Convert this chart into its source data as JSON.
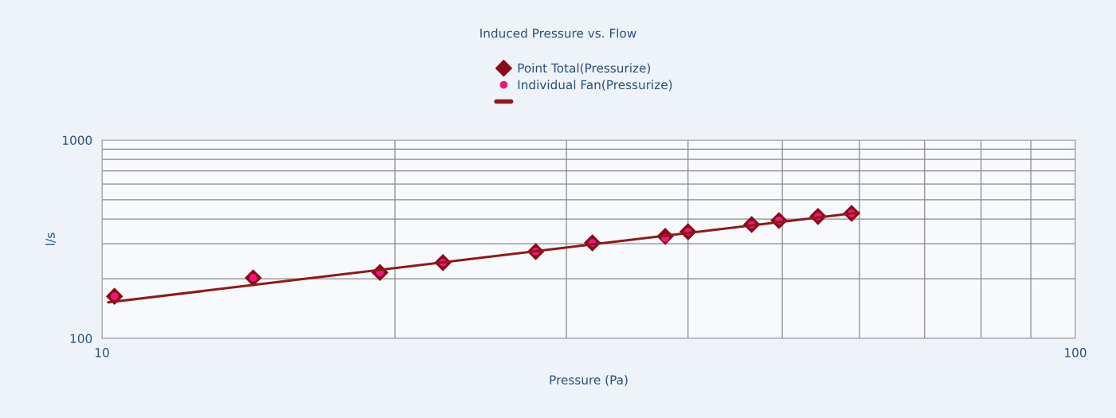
{
  "chart_data": {
    "type": "scatter",
    "title": "Induced Pressure vs. Flow",
    "xlabel": "Pressure (Pa)",
    "ylabel": "l/s",
    "log": "xy",
    "grid": true,
    "legend": "top",
    "xlim": [
      10,
      100
    ],
    "ylim": [
      100,
      1000
    ],
    "xticks": [
      10,
      {
        "value": 20,
        "label": null
      },
      {
        "value": 30,
        "label": null
      },
      {
        "value": 40,
        "label": null
      },
      {
        "value": 50,
        "label": null
      },
      {
        "value": 60,
        "label": null
      },
      {
        "value": 70,
        "label": null
      },
      {
        "value": 80,
        "label": null
      },
      {
        "value": 90,
        "label": null
      },
      100
    ],
    "yticks": [
      100,
      {
        "value": 200,
        "label": null
      },
      {
        "value": 300,
        "label": null
      },
      {
        "value": 400,
        "label": null
      },
      {
        "value": 500,
        "label": null
      },
      {
        "value": 600,
        "label": null
      },
      {
        "value": 700,
        "label": null
      },
      {
        "value": 800,
        "label": null
      },
      {
        "value": 900,
        "label": null
      },
      1000
    ],
    "series": [
      {
        "name": "Point Total(Pressurize)",
        "type": "scatter",
        "marker": "diamond",
        "color": "#8b0a1a",
        "x": [
          10.3,
          14.3,
          19.3,
          22.4,
          27.9,
          31.9,
          37.9,
          40.0,
          46.5,
          49.6,
          54.4,
          58.9
        ],
        "values": [
          163,
          202,
          215,
          241,
          274,
          303,
          327,
          345,
          375,
          393,
          412,
          427
        ]
      },
      {
        "name": "Individual Fan(Pressurize)",
        "type": "scatter",
        "marker": "circle",
        "color": "#e8197a",
        "x": [
          10.3,
          14.3,
          19.3,
          22.4,
          27.9,
          31.9,
          37.9,
          40.0,
          46.5,
          49.6,
          54.4,
          58.9
        ],
        "values": [
          163,
          202,
          215,
          241,
          274,
          303,
          320,
          345,
          375,
          393,
          412,
          427
        ]
      },
      {
        "type": "line",
        "marker": "none",
        "line_style": "solid",
        "color": "#8b1a1a",
        "x": [
          10.15,
          59.9
        ],
        "values": [
          152,
          431
        ]
      }
    ]
  }
}
